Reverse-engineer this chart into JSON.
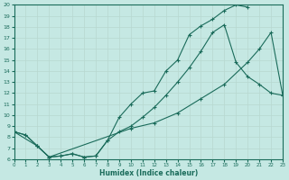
{
  "xlabel": "Humidex (Indice chaleur)",
  "xlim": [
    0,
    23
  ],
  "ylim": [
    6,
    20
  ],
  "xticks": [
    0,
    1,
    2,
    3,
    4,
    5,
    6,
    7,
    8,
    9,
    10,
    11,
    12,
    13,
    14,
    15,
    16,
    17,
    18,
    19,
    20,
    21,
    22,
    23
  ],
  "yticks": [
    6,
    7,
    8,
    9,
    10,
    11,
    12,
    13,
    14,
    15,
    16,
    17,
    18,
    19,
    20
  ],
  "bg_color": "#c5e8e3",
  "line_color": "#1a6b5a",
  "grid_color": "#b8d8d0",
  "curve1_x": [
    0,
    1,
    2,
    3,
    4,
    5,
    6,
    7,
    8,
    9,
    10,
    11,
    12,
    13,
    14,
    15,
    16,
    17,
    18,
    19,
    20
  ],
  "curve1_y": [
    8.5,
    8.2,
    7.2,
    6.2,
    6.3,
    6.5,
    6.2,
    6.3,
    7.7,
    9.8,
    11.0,
    12.0,
    12.2,
    14.0,
    15.0,
    17.3,
    18.1,
    18.7,
    19.5,
    20.0,
    19.8
  ],
  "curve2_x": [
    0,
    1,
    2,
    3,
    4,
    5,
    6,
    7,
    8,
    9,
    10,
    11,
    12,
    13,
    14,
    15,
    16,
    17,
    18,
    19,
    20,
    21,
    22,
    23
  ],
  "curve2_y": [
    8.5,
    8.2,
    7.2,
    6.2,
    6.3,
    6.5,
    6.2,
    6.3,
    7.7,
    8.5,
    9.0,
    9.8,
    10.7,
    11.8,
    13.0,
    14.3,
    15.8,
    17.5,
    18.2,
    14.8,
    13.5,
    12.8,
    12.0,
    11.8
  ],
  "curve3_x": [
    0,
    2,
    3,
    10,
    12,
    14,
    16,
    18,
    20,
    21,
    22,
    23
  ],
  "curve3_y": [
    8.5,
    7.2,
    6.2,
    8.8,
    9.3,
    10.2,
    11.5,
    12.8,
    14.8,
    16.0,
    17.5,
    11.8
  ]
}
